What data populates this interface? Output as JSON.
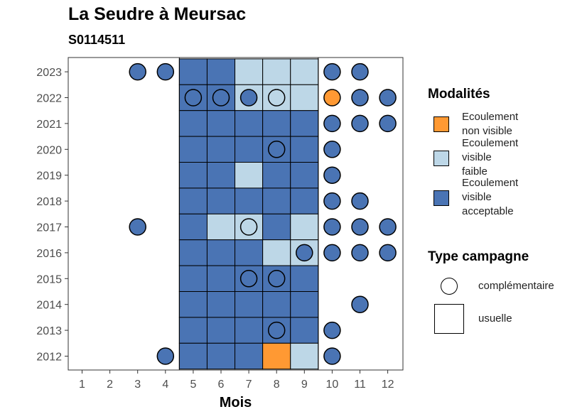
{
  "chart_data": {
    "type": "heatmap",
    "title": "La Seudre à Meursac",
    "subtitle": "S0114511",
    "xlabel": "Mois",
    "ylabel": "",
    "x_ticks": [
      "1",
      "2",
      "3",
      "4",
      "5",
      "6",
      "7",
      "8",
      "9",
      "10",
      "11",
      "12"
    ],
    "y_ticks": [
      "2012",
      "2013",
      "2014",
      "2015",
      "2016",
      "2017",
      "2018",
      "2019",
      "2020",
      "2021",
      "2022",
      "2023"
    ],
    "colors": {
      "non_visible": "#FF9933",
      "faible": "#BDD7E7",
      "acceptable": "#4A74B4",
      "border": "#000000"
    },
    "legend_modalites": {
      "title": "Modalités",
      "items": [
        {
          "key": "non_visible",
          "lines": [
            "Ecoulement",
            "non visible"
          ]
        },
        {
          "key": "faible",
          "lines": [
            "Ecoulement",
            "visible",
            "faible"
          ]
        },
        {
          "key": "acceptable",
          "lines": [
            "Ecoulement",
            "visible",
            "acceptable"
          ]
        }
      ]
    },
    "legend_type": {
      "title": "Type campagne",
      "items": [
        {
          "shape": "circle",
          "label": "complémentaire"
        },
        {
          "shape": "square",
          "label": "usuelle"
        }
      ]
    },
    "observations": [
      {
        "year": 2023,
        "month": 3,
        "type": "complementaire",
        "modalite": "acceptable"
      },
      {
        "year": 2023,
        "month": 4,
        "type": "complementaire",
        "modalite": "acceptable"
      },
      {
        "year": 2023,
        "month": 5,
        "type": "usuelle",
        "modalite": "acceptable"
      },
      {
        "year": 2023,
        "month": 6,
        "type": "usuelle",
        "modalite": "acceptable"
      },
      {
        "year": 2023,
        "month": 7,
        "type": "usuelle",
        "modalite": "faible"
      },
      {
        "year": 2023,
        "month": 8,
        "type": "usuelle",
        "modalite": "faible"
      },
      {
        "year": 2023,
        "month": 9,
        "type": "usuelle",
        "modalite": "faible"
      },
      {
        "year": 2023,
        "month": 10,
        "type": "complementaire",
        "modalite": "acceptable"
      },
      {
        "year": 2023,
        "month": 11,
        "type": "complementaire",
        "modalite": "acceptable"
      },
      {
        "year": 2022,
        "month": 5,
        "type": "usuelle",
        "modalite": "acceptable"
      },
      {
        "year": 2022,
        "month": 6,
        "type": "usuelle",
        "modalite": "acceptable"
      },
      {
        "year": 2022,
        "month": 7,
        "type": "usuelle",
        "modalite": "faible"
      },
      {
        "year": 2022,
        "month": 8,
        "type": "usuelle",
        "modalite": "faible"
      },
      {
        "year": 2022,
        "month": 9,
        "type": "usuelle",
        "modalite": "faible"
      },
      {
        "year": 2022,
        "month": 5,
        "type": "complementaire",
        "modalite": "acceptable"
      },
      {
        "year": 2022,
        "month": 6,
        "type": "complementaire",
        "modalite": "acceptable"
      },
      {
        "year": 2022,
        "month": 7,
        "type": "complementaire",
        "modalite": "acceptable"
      },
      {
        "year": 2022,
        "month": 8,
        "type": "complementaire",
        "modalite": "faible"
      },
      {
        "year": 2022,
        "month": 10,
        "type": "complementaire",
        "modalite": "non_visible"
      },
      {
        "year": 2022,
        "month": 11,
        "type": "complementaire",
        "modalite": "acceptable"
      },
      {
        "year": 2022,
        "month": 12,
        "type": "complementaire",
        "modalite": "acceptable"
      },
      {
        "year": 2021,
        "month": 5,
        "type": "usuelle",
        "modalite": "acceptable"
      },
      {
        "year": 2021,
        "month": 6,
        "type": "usuelle",
        "modalite": "acceptable"
      },
      {
        "year": 2021,
        "month": 7,
        "type": "usuelle",
        "modalite": "acceptable"
      },
      {
        "year": 2021,
        "month": 8,
        "type": "usuelle",
        "modalite": "acceptable"
      },
      {
        "year": 2021,
        "month": 9,
        "type": "usuelle",
        "modalite": "acceptable"
      },
      {
        "year": 2021,
        "month": 10,
        "type": "complementaire",
        "modalite": "acceptable"
      },
      {
        "year": 2021,
        "month": 11,
        "type": "complementaire",
        "modalite": "acceptable"
      },
      {
        "year": 2021,
        "month": 12,
        "type": "complementaire",
        "modalite": "acceptable"
      },
      {
        "year": 2020,
        "month": 5,
        "type": "usuelle",
        "modalite": "acceptable"
      },
      {
        "year": 2020,
        "month": 6,
        "type": "usuelle",
        "modalite": "acceptable"
      },
      {
        "year": 2020,
        "month": 7,
        "type": "usuelle",
        "modalite": "acceptable"
      },
      {
        "year": 2020,
        "month": 8,
        "type": "usuelle",
        "modalite": "acceptable"
      },
      {
        "year": 2020,
        "month": 9,
        "type": "usuelle",
        "modalite": "acceptable"
      },
      {
        "year": 2020,
        "month": 8,
        "type": "complementaire",
        "modalite": "acceptable"
      },
      {
        "year": 2020,
        "month": 10,
        "type": "complementaire",
        "modalite": "acceptable"
      },
      {
        "year": 2019,
        "month": 5,
        "type": "usuelle",
        "modalite": "acceptable"
      },
      {
        "year": 2019,
        "month": 6,
        "type": "usuelle",
        "modalite": "acceptable"
      },
      {
        "year": 2019,
        "month": 7,
        "type": "usuelle",
        "modalite": "faible"
      },
      {
        "year": 2019,
        "month": 8,
        "type": "usuelle",
        "modalite": "acceptable"
      },
      {
        "year": 2019,
        "month": 9,
        "type": "usuelle",
        "modalite": "acceptable"
      },
      {
        "year": 2019,
        "month": 10,
        "type": "complementaire",
        "modalite": "acceptable"
      },
      {
        "year": 2018,
        "month": 5,
        "type": "usuelle",
        "modalite": "acceptable"
      },
      {
        "year": 2018,
        "month": 6,
        "type": "usuelle",
        "modalite": "acceptable"
      },
      {
        "year": 2018,
        "month": 7,
        "type": "usuelle",
        "modalite": "acceptable"
      },
      {
        "year": 2018,
        "month": 8,
        "type": "usuelle",
        "modalite": "acceptable"
      },
      {
        "year": 2018,
        "month": 9,
        "type": "usuelle",
        "modalite": "acceptable"
      },
      {
        "year": 2018,
        "month": 10,
        "type": "complementaire",
        "modalite": "acceptable"
      },
      {
        "year": 2018,
        "month": 11,
        "type": "complementaire",
        "modalite": "acceptable"
      },
      {
        "year": 2017,
        "month": 3,
        "type": "complementaire",
        "modalite": "acceptable"
      },
      {
        "year": 2017,
        "month": 5,
        "type": "usuelle",
        "modalite": "acceptable"
      },
      {
        "year": 2017,
        "month": 6,
        "type": "usuelle",
        "modalite": "faible"
      },
      {
        "year": 2017,
        "month": 7,
        "type": "usuelle",
        "modalite": "faible"
      },
      {
        "year": 2017,
        "month": 8,
        "type": "usuelle",
        "modalite": "acceptable"
      },
      {
        "year": 2017,
        "month": 9,
        "type": "usuelle",
        "modalite": "faible"
      },
      {
        "year": 2017,
        "month": 7,
        "type": "complementaire",
        "modalite": "faible"
      },
      {
        "year": 2017,
        "month": 10,
        "type": "complementaire",
        "modalite": "acceptable"
      },
      {
        "year": 2017,
        "month": 11,
        "type": "complementaire",
        "modalite": "acceptable"
      },
      {
        "year": 2017,
        "month": 12,
        "type": "complementaire",
        "modalite": "acceptable"
      },
      {
        "year": 2016,
        "month": 5,
        "type": "usuelle",
        "modalite": "acceptable"
      },
      {
        "year": 2016,
        "month": 6,
        "type": "usuelle",
        "modalite": "acceptable"
      },
      {
        "year": 2016,
        "month": 7,
        "type": "usuelle",
        "modalite": "acceptable"
      },
      {
        "year": 2016,
        "month": 8,
        "type": "usuelle",
        "modalite": "faible"
      },
      {
        "year": 2016,
        "month": 9,
        "type": "usuelle",
        "modalite": "faible"
      },
      {
        "year": 2016,
        "month": 9,
        "type": "complementaire",
        "modalite": "acceptable"
      },
      {
        "year": 2016,
        "month": 10,
        "type": "complementaire",
        "modalite": "acceptable"
      },
      {
        "year": 2016,
        "month": 11,
        "type": "complementaire",
        "modalite": "acceptable"
      },
      {
        "year": 2016,
        "month": 12,
        "type": "complementaire",
        "modalite": "acceptable"
      },
      {
        "year": 2015,
        "month": 5,
        "type": "usuelle",
        "modalite": "acceptable"
      },
      {
        "year": 2015,
        "month": 6,
        "type": "usuelle",
        "modalite": "acceptable"
      },
      {
        "year": 2015,
        "month": 7,
        "type": "usuelle",
        "modalite": "acceptable"
      },
      {
        "year": 2015,
        "month": 8,
        "type": "usuelle",
        "modalite": "acceptable"
      },
      {
        "year": 2015,
        "month": 9,
        "type": "usuelle",
        "modalite": "acceptable"
      },
      {
        "year": 2015,
        "month": 7,
        "type": "complementaire",
        "modalite": "acceptable"
      },
      {
        "year": 2015,
        "month": 8,
        "type": "complementaire",
        "modalite": "acceptable"
      },
      {
        "year": 2014,
        "month": 5,
        "type": "usuelle",
        "modalite": "acceptable"
      },
      {
        "year": 2014,
        "month": 6,
        "type": "usuelle",
        "modalite": "acceptable"
      },
      {
        "year": 2014,
        "month": 7,
        "type": "usuelle",
        "modalite": "acceptable"
      },
      {
        "year": 2014,
        "month": 8,
        "type": "usuelle",
        "modalite": "acceptable"
      },
      {
        "year": 2014,
        "month": 9,
        "type": "usuelle",
        "modalite": "acceptable"
      },
      {
        "year": 2014,
        "month": 11,
        "type": "complementaire",
        "modalite": "acceptable"
      },
      {
        "year": 2013,
        "month": 5,
        "type": "usuelle",
        "modalite": "acceptable"
      },
      {
        "year": 2013,
        "month": 6,
        "type": "usuelle",
        "modalite": "acceptable"
      },
      {
        "year": 2013,
        "month": 7,
        "type": "usuelle",
        "modalite": "acceptable"
      },
      {
        "year": 2013,
        "month": 8,
        "type": "usuelle",
        "modalite": "acceptable"
      },
      {
        "year": 2013,
        "month": 9,
        "type": "usuelle",
        "modalite": "acceptable"
      },
      {
        "year": 2013,
        "month": 8,
        "type": "complementaire",
        "modalite": "acceptable"
      },
      {
        "year": 2013,
        "month": 10,
        "type": "complementaire",
        "modalite": "acceptable"
      },
      {
        "year": 2012,
        "month": 4,
        "type": "complementaire",
        "modalite": "acceptable"
      },
      {
        "year": 2012,
        "month": 5,
        "type": "usuelle",
        "modalite": "acceptable"
      },
      {
        "year": 2012,
        "month": 6,
        "type": "usuelle",
        "modalite": "acceptable"
      },
      {
        "year": 2012,
        "month": 7,
        "type": "usuelle",
        "modalite": "acceptable"
      },
      {
        "year": 2012,
        "month": 8,
        "type": "usuelle",
        "modalite": "non_visible"
      },
      {
        "year": 2012,
        "month": 9,
        "type": "usuelle",
        "modalite": "faible"
      },
      {
        "year": 2012,
        "month": 10,
        "type": "complementaire",
        "modalite": "acceptable"
      }
    ]
  }
}
